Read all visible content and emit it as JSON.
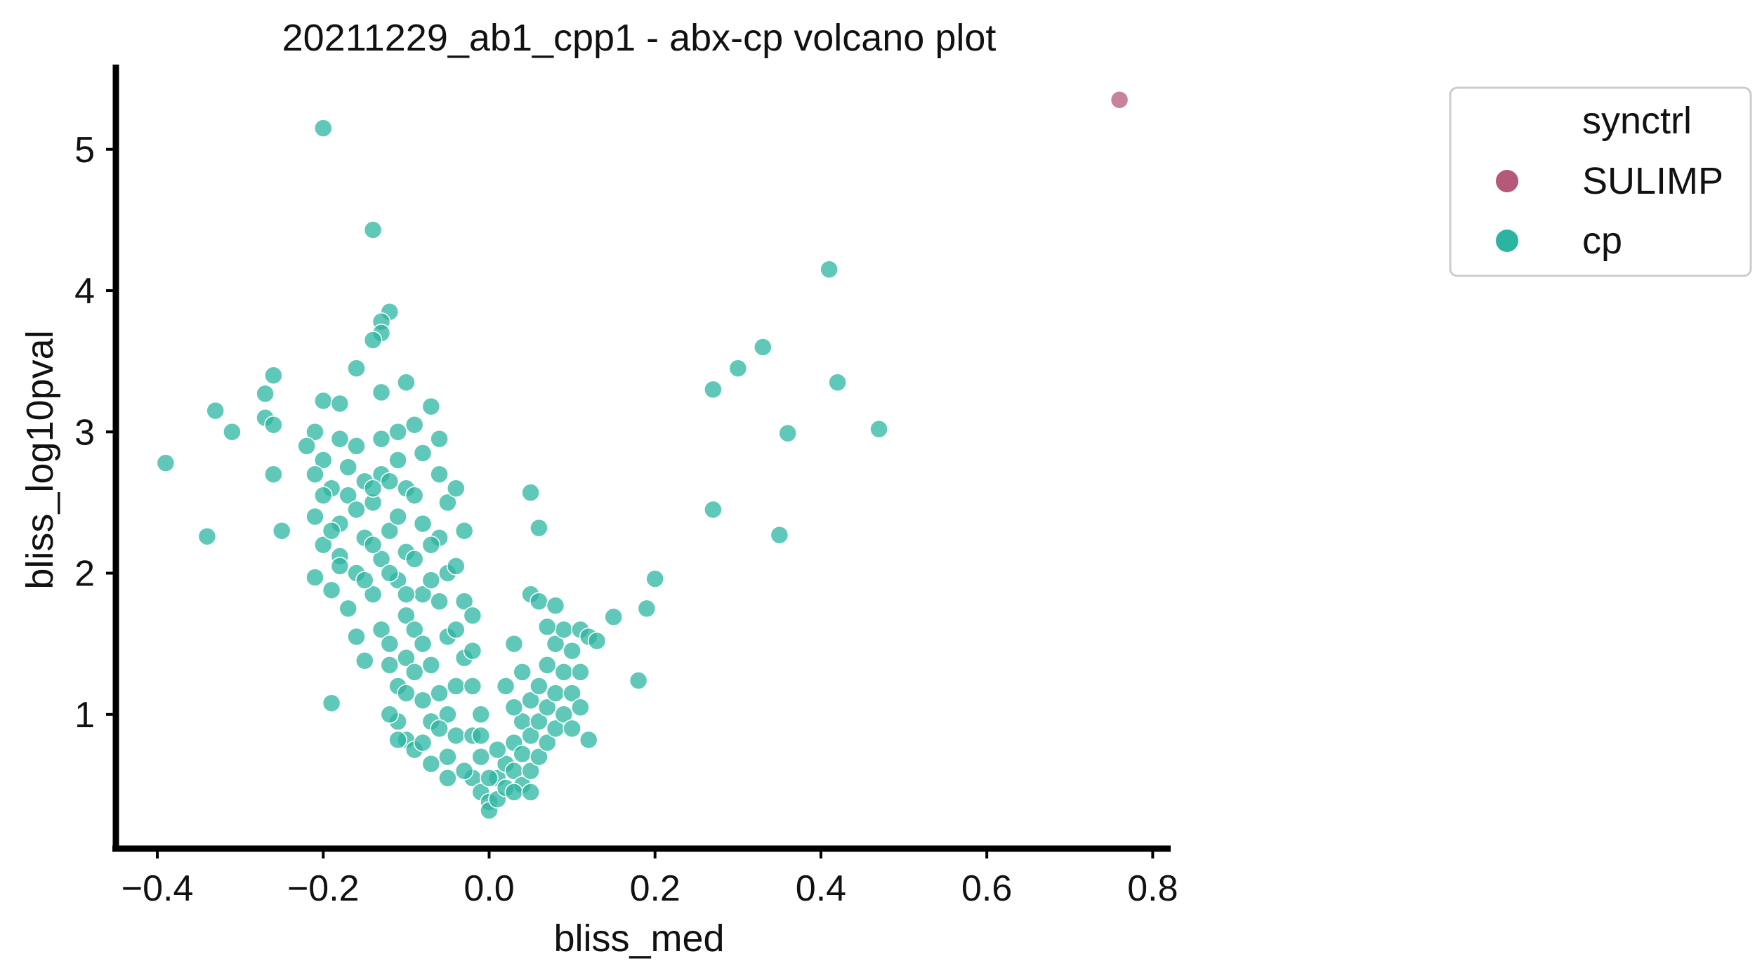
{
  "chart_data": {
    "type": "scatter",
    "title": "20211229_ab1_cpp1 - abx-cp volcano plot",
    "xlabel": "bliss_med",
    "ylabel": "bliss_log10pval",
    "xlim": [
      -0.45,
      0.82
    ],
    "ylim": [
      0.05,
      5.6
    ],
    "x_ticks": [
      -0.4,
      -0.2,
      0.0,
      0.2,
      0.4,
      0.6,
      0.8
    ],
    "x_tick_labels": [
      "−0.4",
      "−0.2",
      "0.0",
      "0.2",
      "0.4",
      "0.6",
      "0.8"
    ],
    "y_ticks": [
      1,
      2,
      3,
      4,
      5
    ],
    "y_tick_labels": [
      "1",
      "2",
      "3",
      "4",
      "5"
    ],
    "grid": false,
    "legend": {
      "title": "synctrl",
      "placement": "outside-right-top",
      "entries": [
        {
          "label": "SULIMP",
          "color": "#b5587a"
        },
        {
          "label": "cp",
          "color": "#2bb5a0"
        }
      ]
    },
    "point_alpha": 0.75,
    "series": [
      {
        "name": "SULIMP",
        "color": "#b5587a",
        "points": [
          [
            0.76,
            5.35
          ]
        ]
      },
      {
        "name": "cp",
        "color": "#2bb5a0",
        "points": [
          [
            -0.2,
            5.15
          ],
          [
            -0.14,
            4.43
          ],
          [
            0.41,
            4.15
          ],
          [
            -0.12,
            3.85
          ],
          [
            -0.13,
            3.78
          ],
          [
            -0.13,
            3.7
          ],
          [
            -0.14,
            3.65
          ],
          [
            0.33,
            3.6
          ],
          [
            -0.16,
            3.45
          ],
          [
            0.3,
            3.45
          ],
          [
            -0.26,
            3.4
          ],
          [
            0.42,
            3.35
          ],
          [
            -0.1,
            3.35
          ],
          [
            -0.27,
            3.27
          ],
          [
            -0.13,
            3.28
          ],
          [
            0.27,
            3.3
          ],
          [
            -0.2,
            3.22
          ],
          [
            -0.18,
            3.2
          ],
          [
            -0.33,
            3.15
          ],
          [
            -0.27,
            3.1
          ],
          [
            -0.07,
            3.18
          ],
          [
            -0.26,
            3.05
          ],
          [
            -0.31,
            3.0
          ],
          [
            0.47,
            3.02
          ],
          [
            0.36,
            2.99
          ],
          [
            -0.39,
            2.78
          ],
          [
            -0.26,
            2.7
          ],
          [
            0.05,
            2.57
          ],
          [
            0.27,
            2.45
          ],
          [
            0.06,
            2.32
          ],
          [
            -0.25,
            2.3
          ],
          [
            -0.34,
            2.26
          ],
          [
            0.35,
            2.27
          ],
          [
            0.2,
            1.96
          ],
          [
            0.19,
            1.75
          ],
          [
            0.15,
            1.69
          ],
          [
            0.18,
            1.24
          ],
          [
            -0.19,
            1.08
          ],
          [
            -0.21,
            3.0
          ],
          [
            -0.22,
            2.9
          ],
          [
            -0.2,
            2.8
          ],
          [
            -0.19,
            2.6
          ],
          [
            -0.21,
            2.4
          ],
          [
            -0.2,
            2.2
          ],
          [
            -0.21,
            1.97
          ],
          [
            -0.18,
            2.95
          ],
          [
            -0.17,
            2.75
          ],
          [
            -0.17,
            2.55
          ],
          [
            -0.18,
            2.35
          ],
          [
            -0.18,
            2.12
          ],
          [
            -0.19,
            1.88
          ],
          [
            -0.16,
            2.9
          ],
          [
            -0.15,
            2.65
          ],
          [
            -0.16,
            2.45
          ],
          [
            -0.15,
            2.25
          ],
          [
            -0.16,
            2.0
          ],
          [
            -0.17,
            1.75
          ],
          [
            -0.16,
            1.55
          ],
          [
            -0.13,
            2.95
          ],
          [
            -0.13,
            2.7
          ],
          [
            -0.14,
            2.5
          ],
          [
            -0.12,
            2.3
          ],
          [
            -0.13,
            2.1
          ],
          [
            -0.14,
            1.85
          ],
          [
            -0.13,
            1.6
          ],
          [
            -0.15,
            1.38
          ],
          [
            -0.12,
            1.5
          ],
          [
            -0.11,
            3.0
          ],
          [
            -0.11,
            2.8
          ],
          [
            -0.1,
            2.6
          ],
          [
            -0.11,
            2.4
          ],
          [
            -0.1,
            2.15
          ],
          [
            -0.11,
            1.95
          ],
          [
            -0.1,
            1.7
          ],
          [
            -0.12,
            1.35
          ],
          [
            -0.11,
            1.2
          ],
          [
            -0.09,
            3.05
          ],
          [
            -0.08,
            2.85
          ],
          [
            -0.09,
            2.55
          ],
          [
            -0.08,
            2.35
          ],
          [
            -0.09,
            2.1
          ],
          [
            -0.08,
            1.85
          ],
          [
            -0.09,
            1.6
          ],
          [
            -0.1,
            1.4
          ],
          [
            -0.1,
            1.15
          ],
          [
            -0.11,
            0.95
          ],
          [
            -0.1,
            0.82
          ],
          [
            -0.09,
            0.75
          ],
          [
            -0.06,
            2.95
          ],
          [
            -0.06,
            2.7
          ],
          [
            -0.05,
            2.5
          ],
          [
            -0.06,
            2.25
          ],
          [
            -0.05,
            2.0
          ],
          [
            -0.06,
            1.8
          ],
          [
            -0.05,
            1.55
          ],
          [
            -0.07,
            1.35
          ],
          [
            -0.06,
            1.15
          ],
          [
            -0.07,
            0.95
          ],
          [
            -0.08,
            0.8
          ],
          [
            -0.07,
            0.65
          ],
          [
            -0.04,
            2.6
          ],
          [
            -0.03,
            2.3
          ],
          [
            -0.04,
            2.05
          ],
          [
            -0.03,
            1.8
          ],
          [
            -0.04,
            1.6
          ],
          [
            -0.03,
            1.4
          ],
          [
            -0.04,
            1.2
          ],
          [
            -0.05,
            1.0
          ],
          [
            -0.04,
            0.85
          ],
          [
            -0.05,
            0.7
          ],
          [
            -0.05,
            0.55
          ],
          [
            -0.02,
            1.7
          ],
          [
            -0.02,
            1.45
          ],
          [
            -0.02,
            1.2
          ],
          [
            -0.01,
            1.0
          ],
          [
            -0.02,
            0.85
          ],
          [
            -0.01,
            0.7
          ],
          [
            -0.02,
            0.55
          ],
          [
            -0.01,
            0.45
          ],
          [
            0.0,
            0.38
          ],
          [
            0.0,
            0.32
          ],
          [
            0.01,
            0.4
          ],
          [
            0.01,
            0.55
          ],
          [
            0.02,
            0.65
          ],
          [
            0.02,
            0.48
          ],
          [
            0.03,
            0.8
          ],
          [
            0.03,
            0.6
          ],
          [
            0.04,
            0.95
          ],
          [
            0.04,
            0.72
          ],
          [
            0.04,
            0.5
          ],
          [
            0.05,
            1.1
          ],
          [
            0.05,
            0.85
          ],
          [
            0.05,
            0.6
          ],
          [
            0.06,
            1.2
          ],
          [
            0.06,
            0.95
          ],
          [
            0.06,
            0.7
          ],
          [
            0.07,
            1.35
          ],
          [
            0.07,
            1.05
          ],
          [
            0.07,
            0.8
          ],
          [
            0.08,
            1.5
          ],
          [
            0.08,
            1.15
          ],
          [
            0.08,
            0.9
          ],
          [
            0.09,
            1.6
          ],
          [
            0.09,
            1.3
          ],
          [
            0.09,
            1.0
          ],
          [
            0.1,
            1.45
          ],
          [
            0.1,
            1.15
          ],
          [
            0.1,
            0.9
          ],
          [
            0.11,
            1.6
          ],
          [
            0.11,
            1.3
          ],
          [
            0.11,
            1.05
          ],
          [
            0.12,
            1.55
          ],
          [
            0.12,
            0.82
          ],
          [
            0.03,
            1.5
          ],
          [
            0.04,
            1.3
          ],
          [
            0.05,
            1.85
          ],
          [
            0.06,
            1.8
          ],
          [
            0.08,
            1.77
          ],
          [
            0.13,
            1.52
          ],
          [
            0.07,
            1.62
          ],
          [
            0.02,
            1.2
          ],
          [
            0.03,
            1.05
          ],
          [
            -0.12,
            1.0
          ],
          [
            -0.11,
            0.82
          ],
          [
            -0.12,
            2.0
          ],
          [
            -0.1,
            1.85
          ],
          [
            -0.14,
            2.6
          ],
          [
            -0.12,
            2.65
          ],
          [
            -0.2,
            2.55
          ],
          [
            -0.19,
            2.3
          ],
          [
            -0.21,
            2.7
          ],
          [
            -0.18,
            2.05
          ],
          [
            -0.07,
            2.2
          ],
          [
            -0.07,
            1.95
          ],
          [
            -0.03,
            0.6
          ],
          [
            0.0,
            0.55
          ],
          [
            -0.01,
            0.85
          ],
          [
            0.01,
            0.75
          ],
          [
            0.03,
            0.45
          ],
          [
            0.05,
            0.45
          ],
          [
            -0.15,
            1.95
          ],
          [
            -0.14,
            2.2
          ],
          [
            -0.08,
            1.5
          ],
          [
            -0.09,
            1.3
          ],
          [
            -0.08,
            1.1
          ],
          [
            -0.06,
            0.9
          ]
        ]
      }
    ]
  }
}
